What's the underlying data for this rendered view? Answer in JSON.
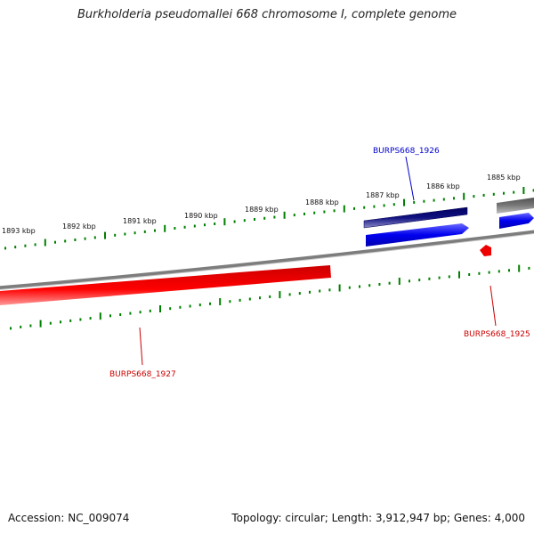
{
  "title": "Burkholderia pseudomallei 668 chromosome I, complete genome",
  "footer": {
    "accession": "Accession: NC_009074",
    "summary": "Topology: circular; Length: 3,912,947 bp; Genes: 4,000"
  },
  "colors": {
    "forward_gene": "#0000ee",
    "forward_gene_dark": "#000080",
    "reverse_gene": "#ee0000",
    "other_feature": "#666666",
    "tick": "#008000",
    "backbone": "#808080"
  },
  "scale_ticks": [
    {
      "label": "1885 kbp"
    },
    {
      "label": "1886 kbp"
    },
    {
      "label": "1887 kbp"
    },
    {
      "label": "1888 kbp"
    },
    {
      "label": "1889 kbp"
    },
    {
      "label": "1890 kbp"
    },
    {
      "label": "1891 kbp"
    },
    {
      "label": "1892 kbp"
    },
    {
      "label": "1893 kbp"
    }
  ],
  "genes": [
    {
      "label": "BURPS668_1926",
      "strand": "forward"
    },
    {
      "label": "BURPS668_1927",
      "strand": "reverse"
    },
    {
      "label": "BURPS668_1925",
      "strand": "reverse"
    }
  ]
}
